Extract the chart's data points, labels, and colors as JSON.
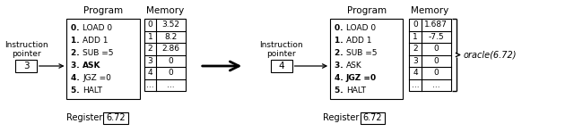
{
  "left_ip_label": "Instruction\npointer",
  "left_ip_value": "3",
  "left_program_title": "Program",
  "left_program_lines": [
    "0. LOAD 0",
    "1. ADD 1",
    "2. SUB =5",
    "3. ASK",
    "4. JGZ =0",
    "5. HALT"
  ],
  "left_bold_indices": [
    3
  ],
  "left_memory_title": "Memory",
  "left_memory_indices": [
    "0",
    "1",
    "2",
    "3",
    "4",
    "..."
  ],
  "left_memory_values": [
    "3.52",
    "8.2",
    "2.86",
    "0",
    "0",
    "..."
  ],
  "left_register_label": "Register",
  "left_register_value": "6.72",
  "right_ip_label": "Instruction\npointer",
  "right_ip_value": "4",
  "right_program_title": "Program",
  "right_program_lines": [
    "0. LOAD 0",
    "1. ADD 1",
    "2. SUB =5",
    "3. ASK",
    "4. JGZ =0",
    "5. HALT"
  ],
  "right_bold_indices": [
    4
  ],
  "right_memory_title": "Memory",
  "right_memory_indices": [
    "0",
    "1",
    "2",
    "3",
    "4",
    "..."
  ],
  "right_memory_values": [
    "1.687",
    "-7.5",
    "0",
    "0",
    "0",
    "..."
  ],
  "right_register_label": "Register",
  "right_register_value": "6.72",
  "oracle_label": "oracle(6.72)",
  "bg_color": "#ffffff"
}
